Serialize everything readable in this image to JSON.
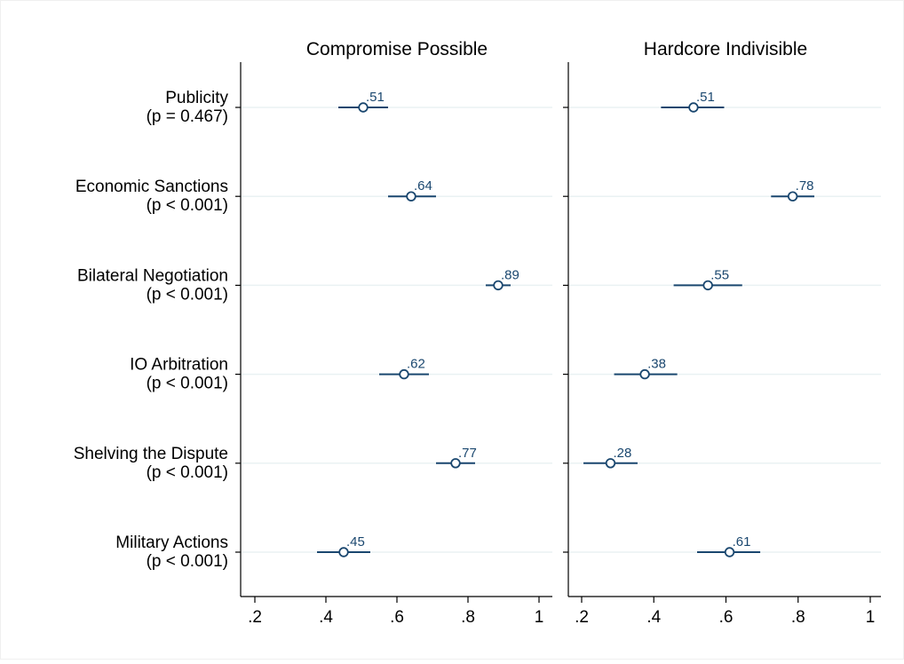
{
  "chart_data": {
    "type": "scatter",
    "subtype": "coefficient-plot-with-confidence-intervals",
    "grid": "horizontal lines at each row",
    "colors": {
      "marker": "#1a476f",
      "ci": "#1a476f",
      "label": "#1a476f",
      "gridline": "#eaf2f3"
    },
    "xlim": [
      0.2,
      1.0
    ],
    "x_ticks": [
      0.2,
      0.4,
      0.6,
      0.8,
      1.0
    ],
    "x_tick_labels": [
      ".2",
      ".4",
      ".6",
      ".8",
      "1"
    ],
    "rows": [
      {
        "label": "Publicity",
        "p_value": "(p = 0.467)"
      },
      {
        "label": "Economic Sanctions",
        "p_value": "(p < 0.001)"
      },
      {
        "label": "Bilateral Negotiation",
        "p_value": "(p < 0.001)"
      },
      {
        "label": "IO Arbitration",
        "p_value": "(p < 0.001)"
      },
      {
        "label": "Shelving the Dispute",
        "p_value": "(p < 0.001)"
      },
      {
        "label": "Military Actions",
        "p_value": "(p < 0.001)"
      }
    ],
    "panels": [
      {
        "title": "Compromise Possible",
        "points": [
          {
            "value": 0.505,
            "lo": 0.435,
            "hi": 0.575,
            "label": ".51"
          },
          {
            "value": 0.64,
            "lo": 0.575,
            "hi": 0.71,
            "label": ".64"
          },
          {
            "value": 0.885,
            "lo": 0.85,
            "hi": 0.92,
            "label": ".89"
          },
          {
            "value": 0.62,
            "lo": 0.55,
            "hi": 0.69,
            "label": ".62"
          },
          {
            "value": 0.765,
            "lo": 0.71,
            "hi": 0.82,
            "label": ".77"
          },
          {
            "value": 0.45,
            "lo": 0.375,
            "hi": 0.525,
            "label": ".45"
          }
        ]
      },
      {
        "title": "Hardcore Indivisible",
        "points": [
          {
            "value": 0.51,
            "lo": 0.42,
            "hi": 0.595,
            "label": ".51"
          },
          {
            "value": 0.785,
            "lo": 0.725,
            "hi": 0.845,
            "label": ".78"
          },
          {
            "value": 0.55,
            "lo": 0.455,
            "hi": 0.645,
            "label": ".55"
          },
          {
            "value": 0.375,
            "lo": 0.29,
            "hi": 0.465,
            "label": ".38"
          },
          {
            "value": 0.28,
            "lo": 0.205,
            "hi": 0.355,
            "label": ".28"
          },
          {
            "value": 0.61,
            "lo": 0.52,
            "hi": 0.695,
            "label": ".61"
          }
        ]
      }
    ]
  }
}
